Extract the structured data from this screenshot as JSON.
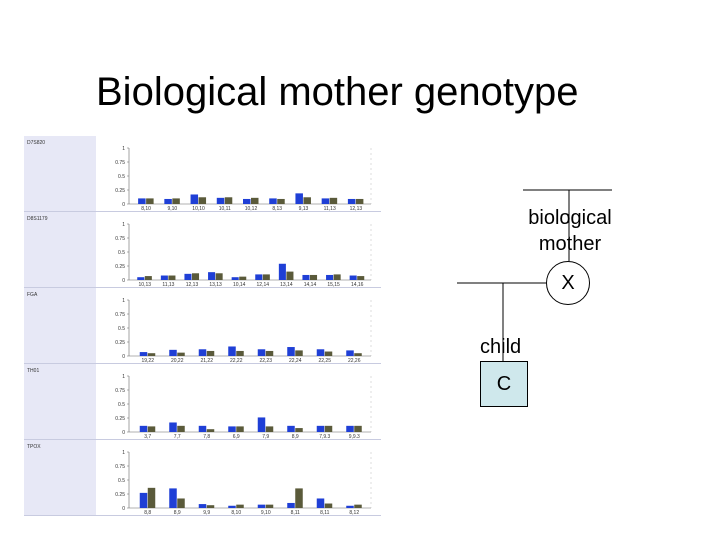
{
  "slide": {
    "title": "Biological mother genotype"
  },
  "pedigree": {
    "mother_label": "biological mother",
    "mother_symbol": "X",
    "child_label": "child",
    "child_symbol": "C",
    "colors": {
      "child_box": "#cfe8ec",
      "bar_primary": "#1f3fd6",
      "bar_secondary": "#5a5a3a"
    }
  },
  "chart_data": [
    {
      "type": "bar",
      "marker": "D7S820",
      "ylim": [
        0,
        1
      ],
      "yticks": [
        "1",
        "0.75",
        "0.5",
        "0.25",
        "0"
      ],
      "categories": [
        "8,10",
        "9,10",
        "10,10",
        "10,11",
        "10,12",
        "8,13",
        "9,13",
        "11,13",
        "12,13"
      ],
      "series": [
        {
          "values": [
            0.1,
            0.09,
            0.17,
            0.11,
            0.09,
            0.1,
            0.19,
            0.1,
            0.09
          ]
        },
        {
          "values": [
            0.1,
            0.1,
            0.12,
            0.12,
            0.11,
            0.09,
            0.12,
            0.11,
            0.09
          ]
        }
      ]
    },
    {
      "type": "bar",
      "marker": "D8S1179",
      "ylim": [
        0,
        1
      ],
      "yticks": [
        "1",
        "0.75",
        "0.5",
        "0.25",
        "0"
      ],
      "categories": [
        "10,13",
        "11,13",
        "12,13",
        "13,13",
        "10,14",
        "12,14",
        "13,14",
        "14,14",
        "15,15",
        "14,16"
      ],
      "series": [
        {
          "values": [
            0.05,
            0.08,
            0.11,
            0.14,
            0.05,
            0.1,
            0.29,
            0.09,
            0.09,
            0.08
          ]
        },
        {
          "values": [
            0.07,
            0.08,
            0.12,
            0.12,
            0.06,
            0.1,
            0.15,
            0.09,
            0.1,
            0.07
          ]
        }
      ]
    },
    {
      "type": "bar",
      "marker": "FGA",
      "ylim": [
        0,
        1
      ],
      "yticks": [
        "1",
        "0.75",
        "0.5",
        "0.25",
        "0"
      ],
      "categories": [
        "19,22",
        "20,22",
        "21,22",
        "22,22",
        "22,23",
        "22,24",
        "22,25",
        "22,26"
      ],
      "series": [
        {
          "values": [
            0.07,
            0.11,
            0.12,
            0.17,
            0.12,
            0.16,
            0.12,
            0.1
          ]
        },
        {
          "values": [
            0.05,
            0.06,
            0.09,
            0.09,
            0.09,
            0.1,
            0.08,
            0.05
          ]
        }
      ]
    },
    {
      "type": "bar",
      "marker": "TH01",
      "ylim": [
        0,
        1
      ],
      "yticks": [
        "1",
        "0.75",
        "0.5",
        "0.25",
        "0"
      ],
      "categories": [
        "3,7",
        "7,7",
        "7,8",
        "6,9",
        "7,9",
        "8,9",
        "7,9.3",
        "9,9.3"
      ],
      "series": [
        {
          "values": [
            0.11,
            0.17,
            0.11,
            0.1,
            0.26,
            0.11,
            0.11,
            0.11
          ]
        },
        {
          "values": [
            0.1,
            0.11,
            0.05,
            0.1,
            0.1,
            0.07,
            0.11,
            0.11
          ]
        }
      ]
    },
    {
      "type": "bar",
      "marker": "TPOX",
      "ylim": [
        0,
        1
      ],
      "yticks": [
        "1",
        "0.75",
        "0.5",
        "0.25",
        "0"
      ],
      "categories": [
        "8,8",
        "8,9",
        "9,9",
        "8,10",
        "9,10",
        "8,11",
        "8,11",
        "8,12"
      ],
      "series": [
        {
          "values": [
            0.27,
            0.35,
            0.07,
            0.04,
            0.06,
            0.09,
            0.17,
            0.04
          ]
        },
        {
          "values": [
            0.36,
            0.17,
            0.05,
            0.06,
            0.06,
            0.35,
            0.08,
            0.06
          ]
        }
      ]
    }
  ]
}
